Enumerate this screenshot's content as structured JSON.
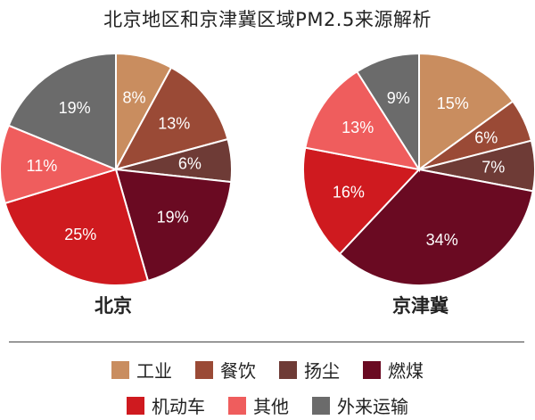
{
  "title": "北京地区和京津冀区域PM2.5来源解析",
  "chart_data": [
    {
      "type": "pie",
      "label": "北京",
      "slices": [
        {
          "category": "工业",
          "value": 8,
          "label": "8%"
        },
        {
          "category": "餐饮",
          "value": 13,
          "label": "13%"
        },
        {
          "category": "扬尘",
          "value": 6,
          "label": "6%"
        },
        {
          "category": "燃煤",
          "value": 19,
          "label": "19%"
        },
        {
          "category": "机动车",
          "value": 25,
          "label": "25%"
        },
        {
          "category": "其他",
          "value": 11,
          "label": "11%"
        },
        {
          "category": "外来运输",
          "value": 19,
          "label": "19%"
        }
      ]
    },
    {
      "type": "pie",
      "label": "京津冀",
      "slices": [
        {
          "category": "工业",
          "value": 15,
          "label": "15%"
        },
        {
          "category": "餐饮",
          "value": 6,
          "label": "6%"
        },
        {
          "category": "扬尘",
          "value": 7,
          "label": "7%"
        },
        {
          "category": "燃煤",
          "value": 34,
          "label": "34%"
        },
        {
          "category": "机动车",
          "value": 16,
          "label": "16%"
        },
        {
          "category": "其他",
          "value": 13,
          "label": "13%"
        },
        {
          "category": "外来运输",
          "value": 9,
          "label": "9%"
        }
      ]
    }
  ],
  "legend": {
    "rows": [
      [
        {
          "label": "工业",
          "color": "#C98D5F"
        },
        {
          "label": "餐饮",
          "color": "#9A4A36"
        },
        {
          "label": "扬尘",
          "color": "#6E3B36"
        },
        {
          "label": "燃煤",
          "color": "#6A0A22"
        }
      ],
      [
        {
          "label": "机动车",
          "color": "#CF1A1F"
        },
        {
          "label": "其他",
          "color": "#EF5D5D"
        },
        {
          "label": "外来运输",
          "color": "#6B6B6B"
        }
      ]
    ]
  }
}
